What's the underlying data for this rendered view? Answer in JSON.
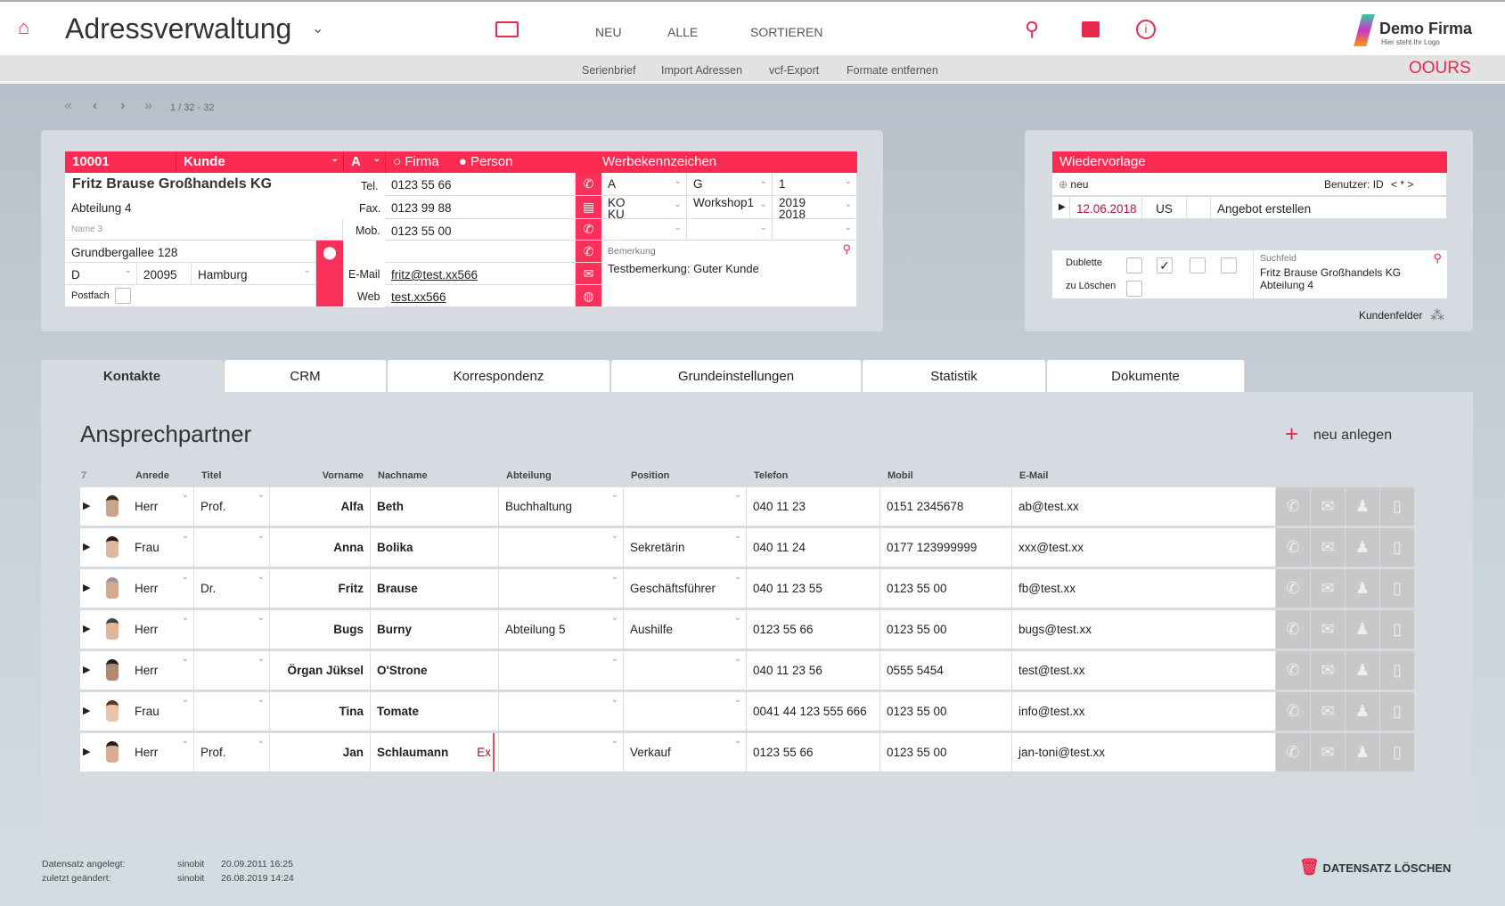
{
  "header": {
    "title": "Adressverwaltung",
    "nav": [
      "NEU",
      "ALLE",
      "SORTIEREN"
    ],
    "logo_name": "Demo Firma",
    "logo_sub": "Hier steht Ihr Logo"
  },
  "subnav": {
    "items": [
      "Serienbrief",
      "Import Adressen",
      "vcf-Export",
      "Formate entfernen"
    ],
    "brand": "OOURS"
  },
  "pager": {
    "text": "1 / 32 - 32"
  },
  "record": {
    "id": "10001",
    "type": "Kunde",
    "abc": "A",
    "opt_firma": "Firma",
    "opt_person": "Person",
    "werbe_label": "Werbekennzeichen",
    "name1": "Fritz Brause Großhandels KG",
    "name2": "Abteilung 4",
    "name3_placeholder": "Name 3",
    "street": "Grundbergallee 128",
    "country": "D",
    "zip": "20095",
    "city": "Hamburg",
    "postfach_label": "Postfach",
    "tel_label": "Tel.",
    "tel": "0123 55 66",
    "fax_label": "Fax.",
    "fax": "0123 99 88",
    "mob_label": "Mob.",
    "mob": "0123 55 00",
    "email_label": "E-Mail",
    "email": "fritz@test.xx566",
    "web_label": "Web",
    "web": "test.xx566",
    "werbe": [
      [
        "A",
        "G",
        "1"
      ],
      [
        "KO\nKU",
        "Workshop1",
        "2019\n2018"
      ],
      [
        "",
        "",
        ""
      ]
    ],
    "bemerkung_label": "Bemerkung",
    "bemerkung": "Testbemerkung: Guter Kunde"
  },
  "wiedervorlage": {
    "title": "Wiedervorlage",
    "neu": "neu",
    "benutzer": "Benutzer: ID",
    "nav": "< * >",
    "date": "12.06.2018",
    "user": "US",
    "task": "Angebot erstellen"
  },
  "flags": {
    "dublette": "Dublette",
    "zu_loeschen": "zu Löschen",
    "checks": [
      false,
      true,
      false,
      false
    ],
    "suchfeld_label": "Suchfeld",
    "suchfeld": "Fritz Brause Großhandels KG\nAbteilung 4",
    "kundenfelder": "Kundenfelder"
  },
  "tabs": [
    "Kontakte",
    "CRM",
    "Korrespondenz",
    "Grundeinstellungen",
    "Statistik",
    "Dokumente"
  ],
  "contacts": {
    "title": "Ansprechpartner",
    "new_label": "neu anlegen",
    "count": "7",
    "columns": [
      "Anrede",
      "Titel",
      "Vorname",
      "Nachname",
      "Abteilung",
      "Position",
      "Telefon",
      "Mobil",
      "E-Mail"
    ],
    "rows": [
      {
        "anrede": "Herr",
        "titel": "Prof.",
        "vorname": "Alfa",
        "nachname": "Beth",
        "abteilung": "Buchhaltung",
        "position": "",
        "telefon": "040 11 23",
        "mobil": "0151 2345678",
        "email": "ab@test.xx",
        "flag": ""
      },
      {
        "anrede": "Frau",
        "titel": "",
        "vorname": "Anna",
        "nachname": "Bolika",
        "abteilung": "",
        "position": "Sekretärin",
        "telefon": "040 11 24",
        "mobil": "0177 123999999",
        "email": "xxx@test.xx",
        "flag": ""
      },
      {
        "anrede": "Herr",
        "titel": "Dr.",
        "vorname": "Fritz",
        "nachname": "Brause",
        "abteilung": "",
        "position": "Geschäftsführer",
        "telefon": "040 11 23 55",
        "mobil": "0123 55 00",
        "email": "fb@test.xx",
        "flag": ""
      },
      {
        "anrede": "Herr",
        "titel": "",
        "vorname": "Bugs",
        "nachname": "Burny",
        "abteilung": "Abteilung 5",
        "position": "Aushilfe",
        "telefon": "0123 55 66",
        "mobil": "0123 55 00",
        "email": "bugs@test.xx",
        "flag": ""
      },
      {
        "anrede": "Herr",
        "titel": "",
        "vorname": "Örgan Jüksel",
        "nachname": "O'Strone",
        "abteilung": "",
        "position": "",
        "telefon": "040 11 23 56",
        "mobil": "0555 5454",
        "email": "test@test.xx",
        "flag": ""
      },
      {
        "anrede": "Frau",
        "titel": "",
        "vorname": "Tina",
        "nachname": "Tomate",
        "abteilung": "",
        "position": "",
        "telefon": "0041 44 123 555 666",
        "mobil": "0123 55 00",
        "email": "info@test.xx",
        "flag": ""
      },
      {
        "anrede": "Herr",
        "titel": "Prof.",
        "vorname": "Jan",
        "nachname": "Schlaumann",
        "abteilung": "",
        "position": "Verkauf",
        "telefon": "0123 55 66",
        "mobil": "0123 55 00",
        "email": "jan-toni@test.xx",
        "flag": "Ex"
      }
    ]
  },
  "footer": {
    "created_label": "Datensatz angelegt:",
    "created_by": "sinobit",
    "created_at": "20.09.2011 16:25",
    "changed_label": "zuletzt geändert:",
    "changed_by": "sinobit",
    "changed_at": "26.08.2019 14:24",
    "delete_label": "DATENSATZ LÖSCHEN"
  },
  "colors": {
    "accent": "#fd2a51",
    "icon_gray": "#c8c8c8"
  }
}
